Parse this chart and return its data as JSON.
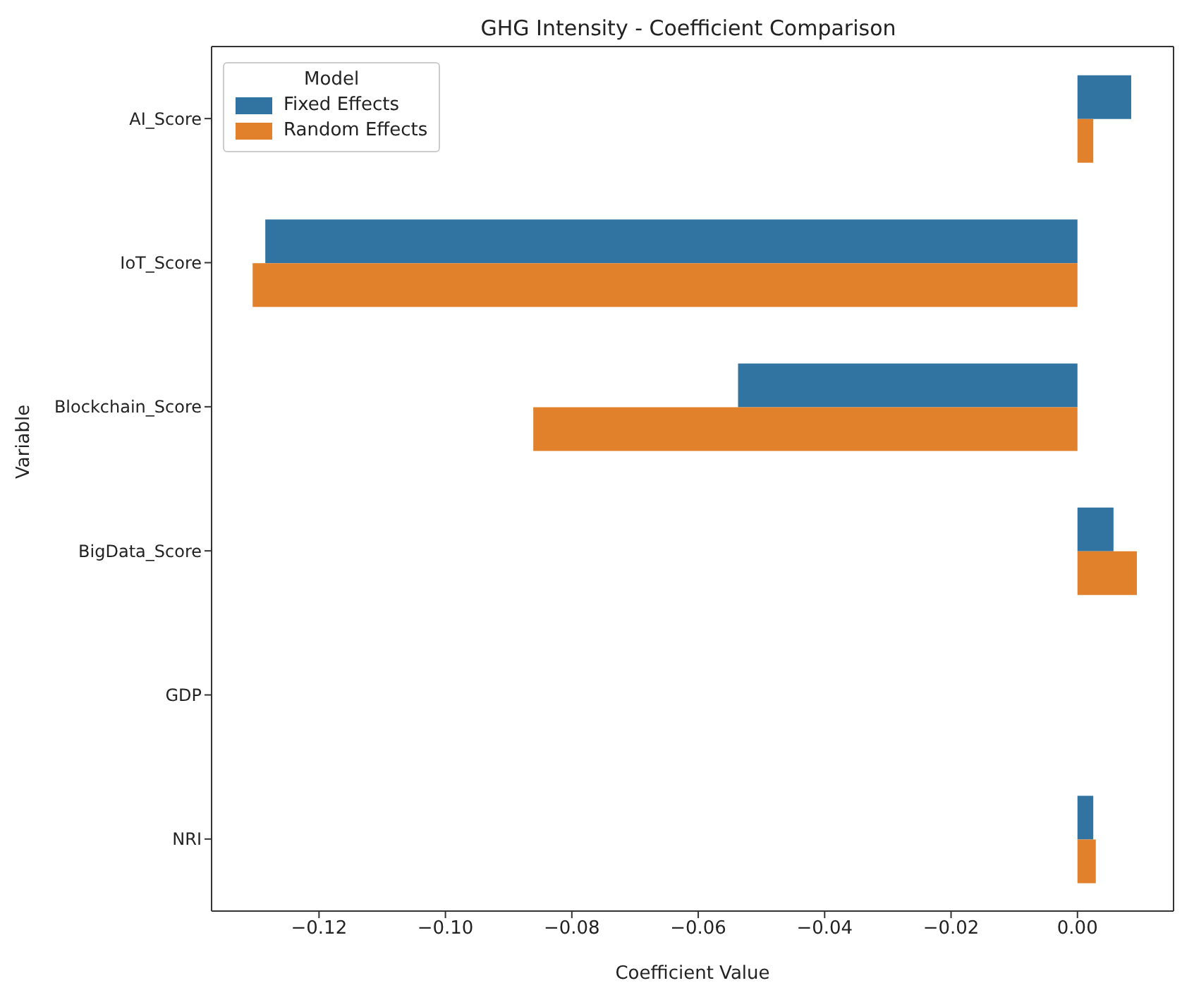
{
  "chart_data": {
    "type": "bar",
    "orientation": "horizontal",
    "title": "GHG Intensity - Coefficient Comparison",
    "xlabel": "Coefficient Value",
    "ylabel": "Variable",
    "legend_title": "Model",
    "legend": "top left",
    "grid": false,
    "categories": [
      "AI_Score",
      "IoT_Score",
      "Blockchain_Score",
      "BigData_Score",
      "GDP",
      "NRI"
    ],
    "xlim": [
      -0.137,
      0.0152
    ],
    "xticks": [
      {
        "value": -0.12,
        "label": "−0.12"
      },
      {
        "value": -0.1,
        "label": "−0.10"
      },
      {
        "value": -0.08,
        "label": "−0.08"
      },
      {
        "value": -0.06,
        "label": "−0.06"
      },
      {
        "value": -0.04,
        "label": "−0.04"
      },
      {
        "value": -0.02,
        "label": "−0.02"
      },
      {
        "value": 0,
        "label": "0.00"
      }
    ],
    "series": [
      {
        "name": "Fixed Effects",
        "color": "#3274a1",
        "values": [
          0.0085,
          -0.1285,
          -0.0537,
          0.0057,
          0,
          0.0025
        ]
      },
      {
        "name": "Random Effects",
        "color": "#e1812c",
        "values": [
          0.0025,
          -0.1305,
          -0.0861,
          0.0094,
          0,
          0.0029
        ]
      }
    ]
  }
}
